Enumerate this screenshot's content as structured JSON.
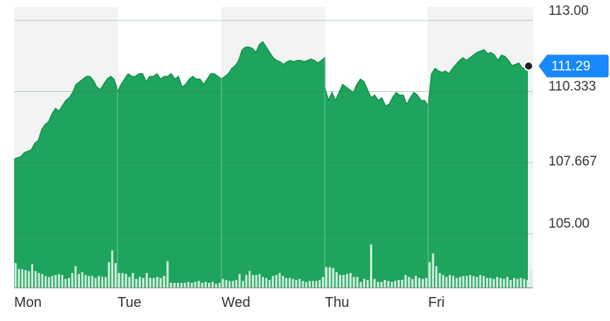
{
  "chart_data": {
    "type": "area",
    "x_labels": [
      "Mon",
      "Tue",
      "Wed",
      "Thu",
      "Fri"
    ],
    "y_ticks": [
      113.0,
      110.333,
      107.667,
      105.0
    ],
    "y_tick_labels": [
      "113.00",
      "110.333",
      "107.667",
      "105.00"
    ],
    "ylim": [
      102.98,
      113.5
    ],
    "last_price": 111.29,
    "last_price_label": "111.29",
    "grid": true,
    "series": [
      {
        "values_by_day": [
          [
            107.8,
            107.85,
            107.9,
            108.05,
            108.1,
            108.15,
            108.4,
            108.5,
            108.9,
            109.1,
            109.2,
            109.5,
            109.7,
            109.6,
            109.8,
            110.0,
            110.1,
            110.3,
            110.6,
            110.7,
            110.8,
            110.9,
            110.9,
            110.75,
            110.5,
            110.4,
            110.6,
            110.8,
            110.9,
            110.8,
            110.4
          ],
          [
            110.3,
            110.6,
            110.8,
            111.0,
            110.9,
            110.9,
            111.0,
            111.0,
            110.7,
            110.9,
            110.9,
            111.0,
            110.8,
            110.9,
            110.9,
            111.0,
            110.8,
            110.9,
            110.5,
            110.6,
            110.8,
            110.9,
            110.8,
            110.8,
            110.6,
            110.8,
            111.0,
            111.0,
            110.9,
            110.8
          ],
          [
            110.8,
            110.9,
            111.0,
            111.2,
            111.3,
            111.5,
            111.9,
            112.0,
            112.0,
            111.95,
            111.8,
            112.1,
            112.2,
            112.0,
            111.8,
            111.6,
            111.5,
            111.45,
            111.35,
            111.45,
            111.5,
            111.45,
            111.5,
            111.5,
            111.45,
            111.5,
            111.55,
            111.5,
            111.4,
            111.5,
            111.6
          ],
          [
            110.5,
            110.0,
            110.3,
            110.0,
            110.3,
            110.6,
            110.5,
            110.4,
            110.3,
            110.6,
            110.8,
            110.7,
            110.4,
            110.1,
            110.2,
            110.0,
            110.1,
            109.8,
            109.85,
            110.1,
            110.3,
            110.2,
            110.2,
            109.85,
            110.1,
            110.3,
            110.2,
            110.0,
            110.0,
            109.8
          ],
          [
            109.8,
            111.0,
            111.2,
            111.1,
            111.05,
            111.1,
            111.0,
            111.2,
            111.35,
            111.5,
            111.6,
            111.5,
            111.6,
            111.7,
            111.8,
            111.85,
            111.9,
            111.75,
            111.8,
            111.7,
            111.5,
            111.7,
            111.65,
            111.5,
            111.3,
            111.35,
            111.4,
            111.2,
            111.25,
            111.25,
            111.29
          ]
        ]
      }
    ],
    "volume_by_day": [
      [
        0.25,
        0.19,
        0.19,
        0.18,
        0.17,
        0.24,
        0.17,
        0.15,
        0.14,
        0.12,
        0.11,
        0.12,
        0.13,
        0.14,
        0.13,
        0.09,
        0.1,
        0.15,
        0.22,
        0.14,
        0.16,
        0.13,
        0.12,
        0.12,
        0.1,
        0.12,
        0.11,
        0.11,
        0.26,
        0.38,
        0.25
      ],
      [
        0.15,
        0.15,
        0.14,
        0.11,
        0.15,
        0.09,
        0.11,
        0.1,
        0.15,
        0.1,
        0.1,
        0.11,
        0.1,
        0.12,
        0.27,
        0.05,
        0.05,
        0.05,
        0.05,
        0.05,
        0.06,
        0.05,
        0.06,
        0.07,
        0.05,
        0.06,
        0.05,
        0.06,
        0.04,
        0.05
      ],
      [
        0.09,
        0.08,
        0.07,
        0.07,
        0.08,
        0.14,
        0.07,
        0.13,
        0.17,
        0.13,
        0.13,
        0.14,
        0.11,
        0.1,
        0.08,
        0.12,
        0.13,
        0.15,
        0.12,
        0.1,
        0.1,
        0.09,
        0.08,
        0.09,
        0.07,
        0.06,
        0.07,
        0.07,
        0.07,
        0.08,
        0.11
      ],
      [
        0.21,
        0.21,
        0.2,
        0.16,
        0.13,
        0.13,
        0.14,
        0.15,
        0.11,
        0.11,
        0.06,
        0.09,
        0.08,
        0.44,
        0.09,
        0.06,
        0.06,
        0.08,
        0.07,
        0.06,
        0.07,
        0.08,
        0.08,
        0.13,
        0.11,
        0.09,
        0.12,
        0.1,
        0.09,
        0.1
      ],
      [
        0.26,
        0.35,
        0.22,
        0.15,
        0.13,
        0.11,
        0.13,
        0.12,
        0.1,
        0.11,
        0.12,
        0.12,
        0.13,
        0.12,
        0.11,
        0.13,
        0.12,
        0.1,
        0.1,
        0.09,
        0.11,
        0.1,
        0.09,
        0.11,
        0.08,
        0.1,
        0.09,
        0.1,
        0.09,
        0.08,
        0.18
      ]
    ],
    "colors": {
      "area_fill": "#1ea45c",
      "area_line": "#109348",
      "volume_bar": "#d1f0dd",
      "shade_band": "#f3f3f3",
      "grid": "#2e7a4b",
      "last_price_tag": "#1888fe",
      "last_price_dot": "#222222",
      "tick_text": "#333333"
    }
  }
}
